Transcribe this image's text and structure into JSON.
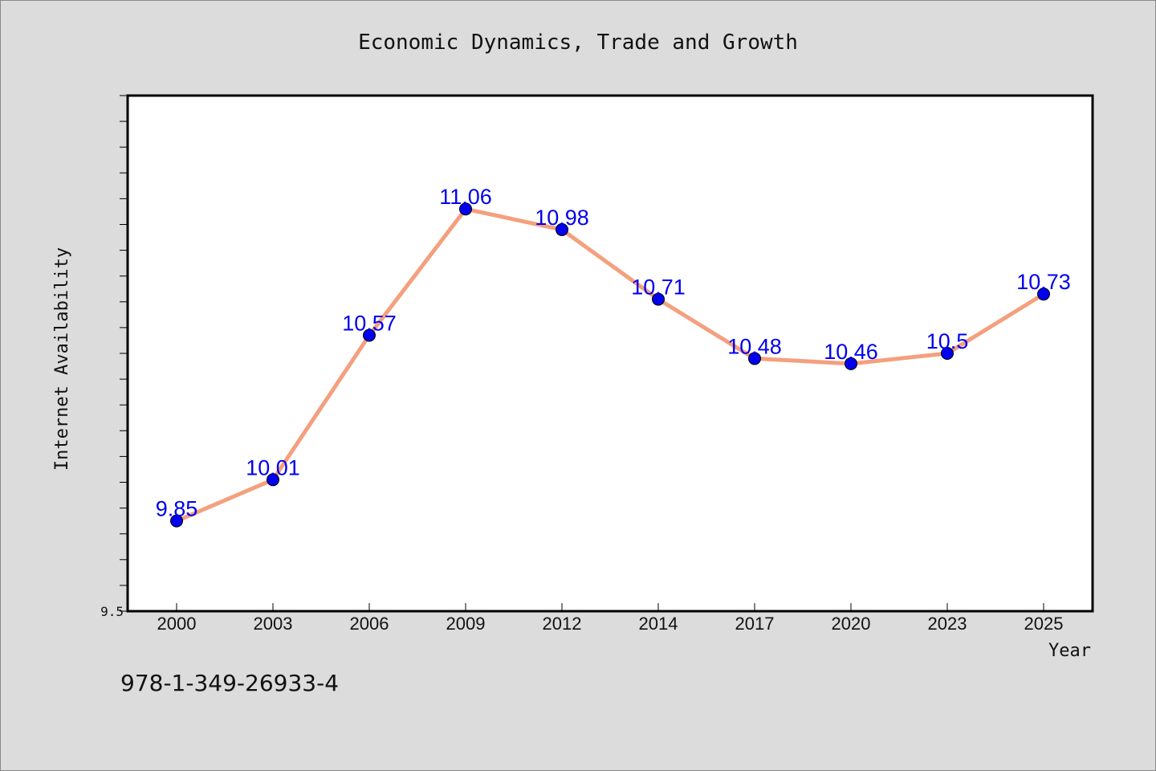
{
  "chart_data": {
    "type": "line",
    "title": "Economic Dynamics, Trade and Growth",
    "xlabel": "Year",
    "ylabel": "Internet Availability",
    "categories": [
      "2000",
      "2003",
      "2006",
      "2009",
      "2012",
      "2014",
      "2017",
      "2020",
      "2023",
      "2025"
    ],
    "series": [
      {
        "values": [
          9.85,
          10.01,
          10.57,
          11.06,
          10.98,
          10.71,
          10.48,
          10.46,
          10.5,
          10.73
        ],
        "data_labels": [
          "9.85",
          "10.01",
          "10.57",
          "11.06",
          "10.98",
          "10.71",
          "10.48",
          "10.46",
          "10.5",
          "10.73"
        ]
      }
    ],
    "ylim": [
      9.5,
      11.5
    ],
    "y_tick_labels": [
      {
        "value": 9.5,
        "label": "9.5"
      }
    ],
    "y_minor_step": 0.1,
    "grid": false,
    "colors": {
      "line": "#f4a07e",
      "marker": "#0000ee",
      "data_label": "#0000ee",
      "plot_background": "#ffffff",
      "page_background": "#dcdcdc"
    }
  },
  "footer": {
    "isbn": "978-1-349-26933-4"
  }
}
